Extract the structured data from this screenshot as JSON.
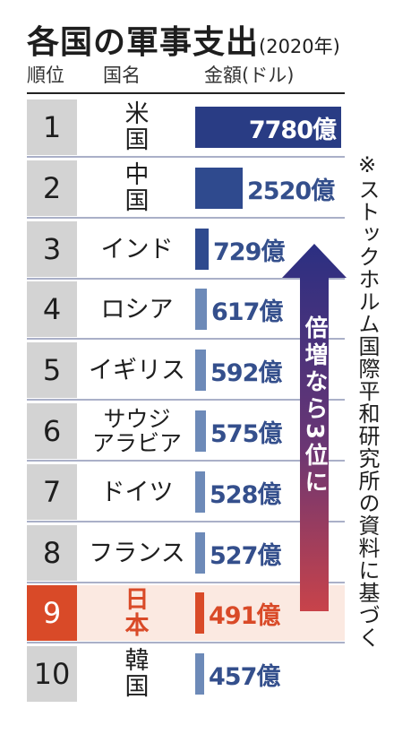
{
  "title": "各国の軍事支出",
  "subtitle": "(2020年)",
  "headers": {
    "rank": "順位",
    "country": "国名",
    "amount": "金額(ドル)"
  },
  "arrow_label": "倍増なら3位に",
  "note": "※ストックホルム国際平和研究所の資料に基づく",
  "colors": {
    "bar_top": "#293c84",
    "bar_mid": "#2f4a8e",
    "bar_low": "#6d8ab8",
    "highlight": "#d94a28",
    "highlight_bg": "#fbe9e1",
    "arrow_top": "#2b2f82",
    "arrow_bottom": "#c8434a"
  },
  "chart_data": {
    "type": "bar",
    "unit": "億",
    "categories": [
      "米　国",
      "中　国",
      "インド",
      "ロシア",
      "イギリス",
      "サウジ\nアラビア",
      "ドイツ",
      "フランス",
      "日　本",
      "韓　国"
    ],
    "ranks": [
      "1",
      "2",
      "3",
      "4",
      "5",
      "6",
      "7",
      "8",
      "9",
      "10"
    ],
    "values": [
      7780,
      2520,
      729,
      617,
      592,
      575,
      528,
      527,
      491,
      457
    ],
    "labels": [
      "7780億",
      "2520億",
      "729億",
      "617億",
      "592億",
      "575億",
      "528億",
      "527億",
      "491億",
      "457億"
    ],
    "highlight_index": 8
  }
}
